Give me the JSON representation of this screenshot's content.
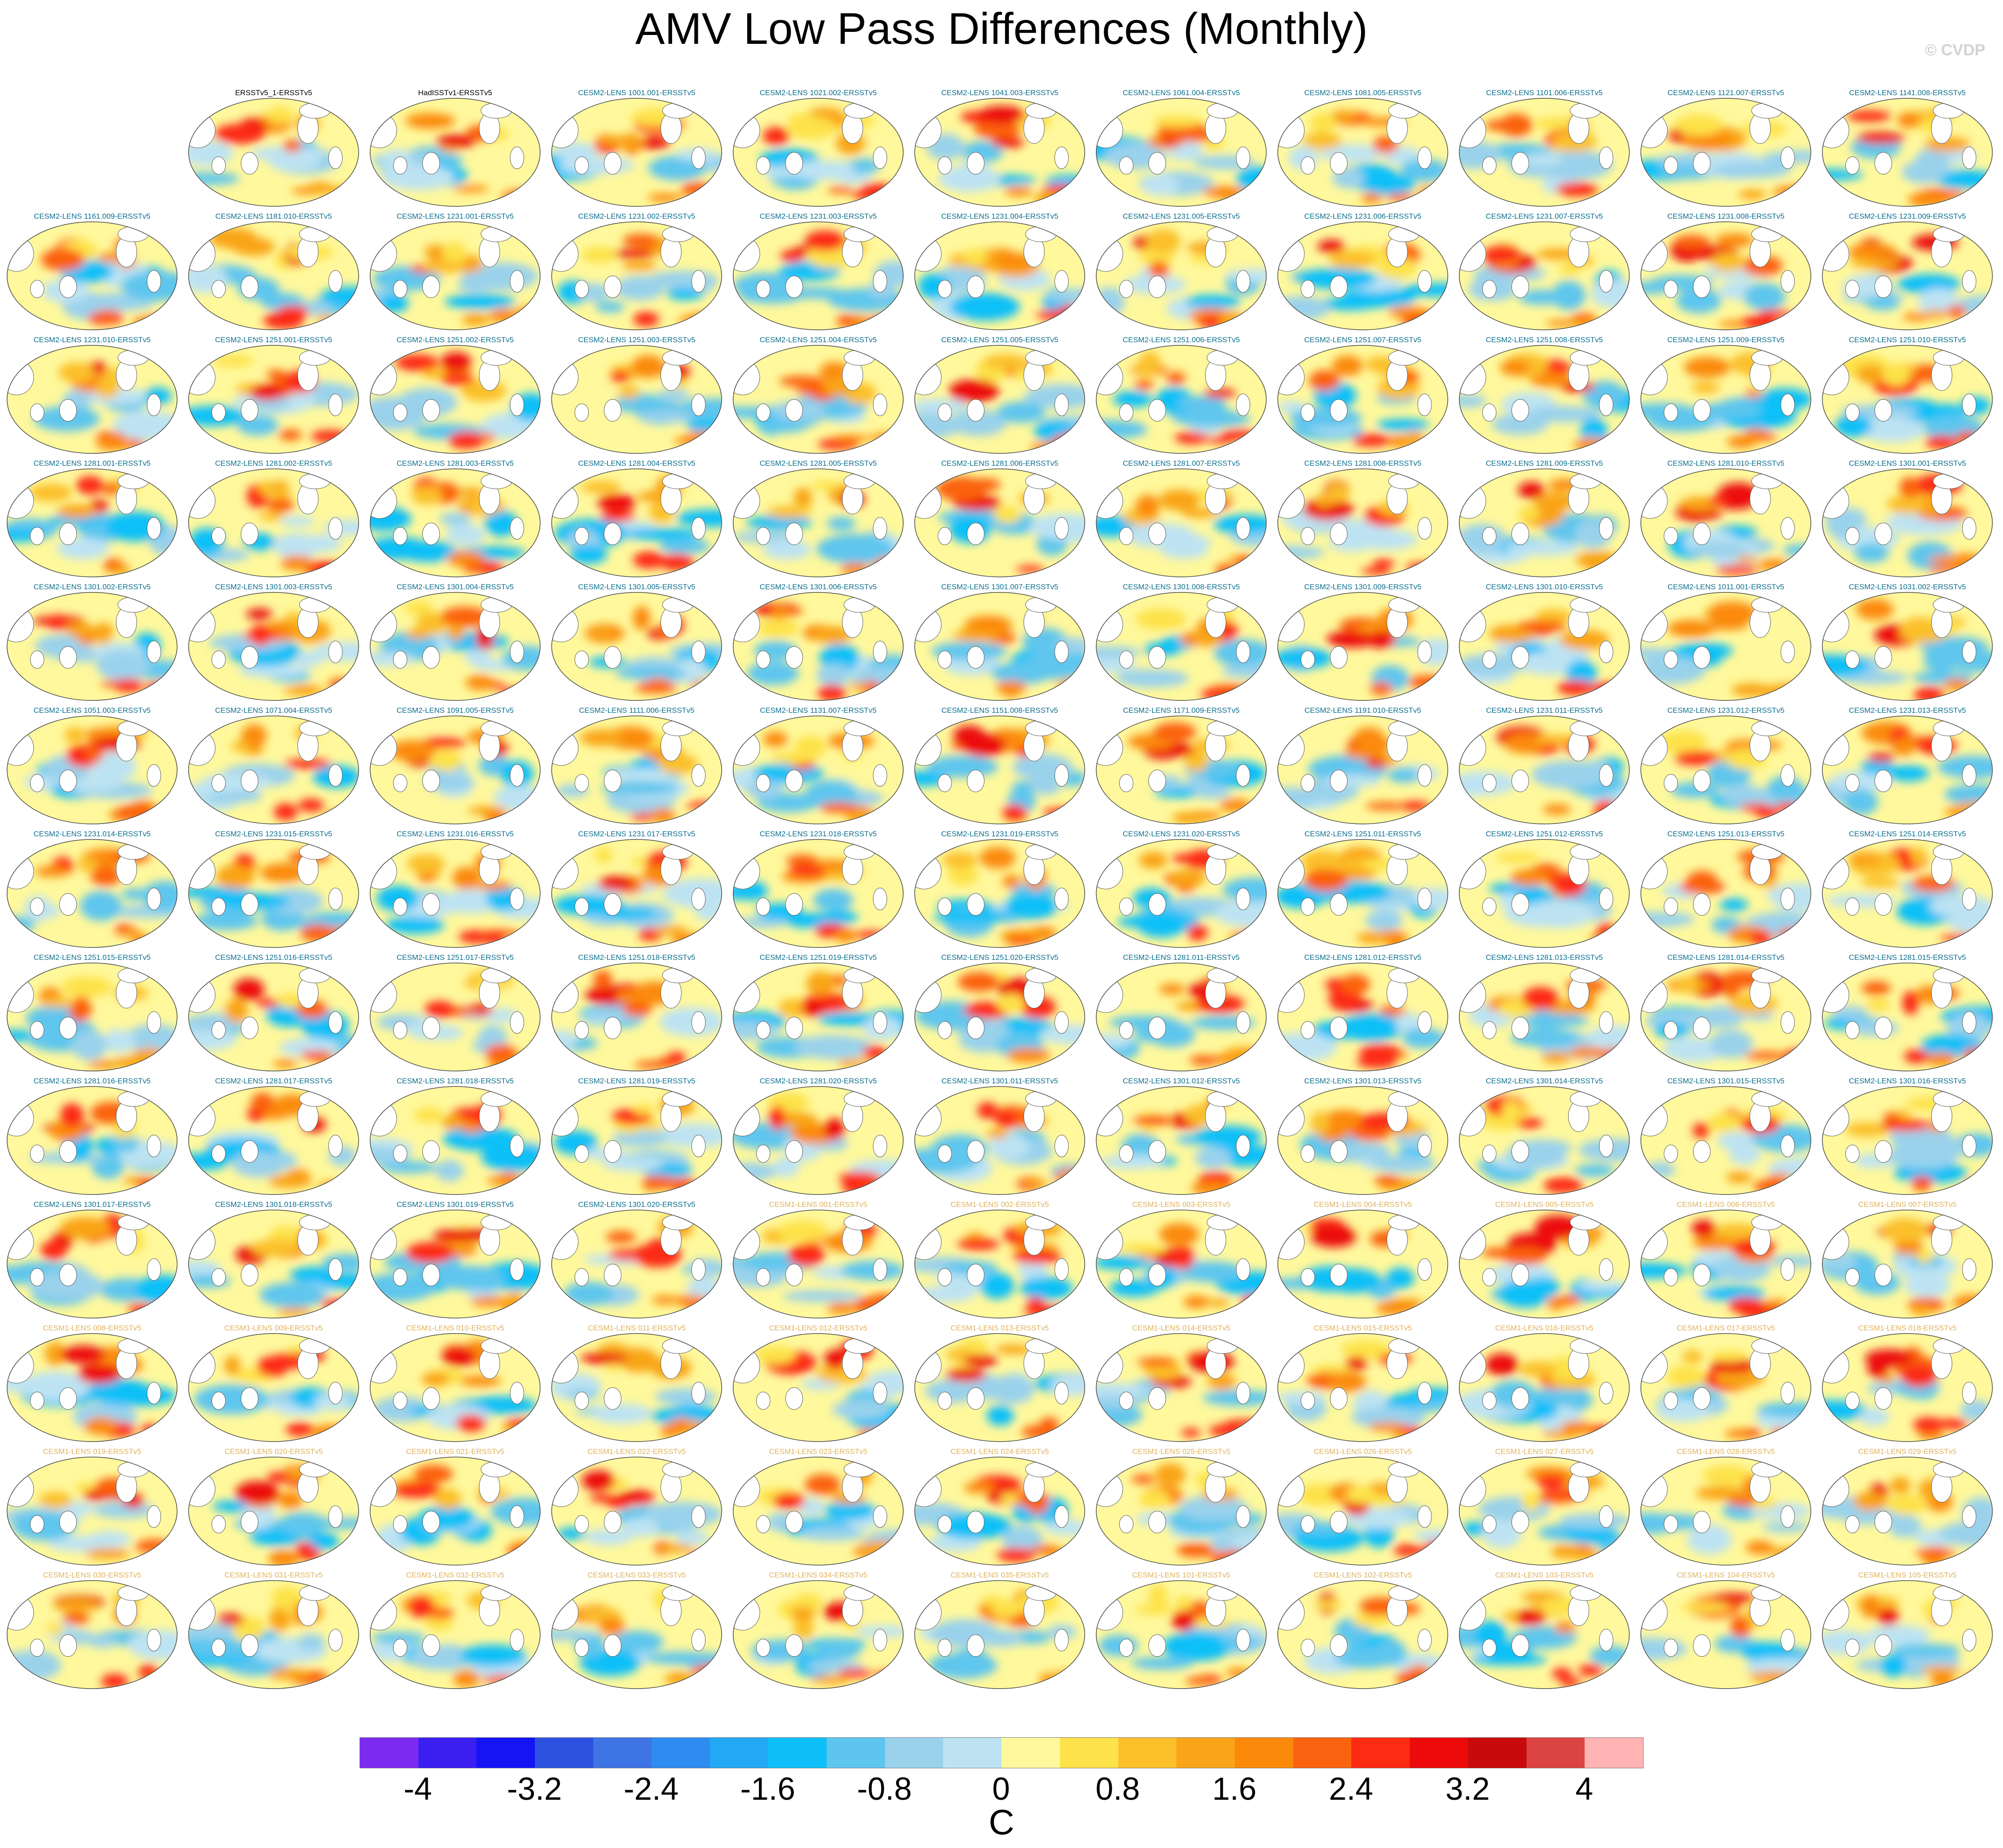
{
  "title": "AMV Low Pass Differences (Monthly)",
  "credit": "© CVDP",
  "panel_colors": {
    "observations": "#000000",
    "cesm2": "#0b6f8f",
    "cesm1": "#e0b25a"
  },
  "panels": [
    {
      "label": "ERSSTv5_1-ERSSTv5",
      "group": "observations"
    },
    {
      "label": "HadISSTv1-ERSSTv5",
      "group": "observations"
    },
    {
      "label": "CESM2-LENS 1001.001-ERSSTv5",
      "group": "cesm2"
    },
    {
      "label": "CESM2-LENS 1021.002-ERSSTv5",
      "group": "cesm2"
    },
    {
      "label": "CESM2-LENS 1041.003-ERSSTv5",
      "group": "cesm2"
    },
    {
      "label": "CESM2-LENS 1061.004-ERSSTv5",
      "group": "cesm2"
    },
    {
      "label": "CESM2-LENS 1081.005-ERSSTv5",
      "group": "cesm2"
    },
    {
      "label": "CESM2-LENS 1101.006-ERSSTv5",
      "group": "cesm2"
    },
    {
      "label": "CESM2-LENS 1121.007-ERSSTv5",
      "group": "cesm2"
    },
    {
      "label": "CESM2-LENS 1141.008-ERSSTv5",
      "group": "cesm2"
    },
    {
      "label": "CESM2-LENS 1161.009-ERSSTv5",
      "group": "cesm2"
    },
    {
      "label": "CESM2-LENS 1181.010-ERSSTv5",
      "group": "cesm2"
    },
    {
      "label": "CESM2-LENS 1231.001-ERSSTv5",
      "group": "cesm2"
    },
    {
      "label": "CESM2-LENS 1231.002-ERSSTv5",
      "group": "cesm2"
    },
    {
      "label": "CESM2-LENS 1231.003-ERSSTv5",
      "group": "cesm2"
    },
    {
      "label": "CESM2-LENS 1231.004-ERSSTv5",
      "group": "cesm2"
    },
    {
      "label": "CESM2-LENS 1231.005-ERSSTv5",
      "group": "cesm2"
    },
    {
      "label": "CESM2-LENS 1231.006-ERSSTv5",
      "group": "cesm2"
    },
    {
      "label": "CESM2-LENS 1231.007-ERSSTv5",
      "group": "cesm2"
    },
    {
      "label": "CESM2-LENS 1231.008-ERSSTv5",
      "group": "cesm2"
    },
    {
      "label": "CESM2-LENS 1231.009-ERSSTv5",
      "group": "cesm2"
    },
    {
      "label": "CESM2-LENS 1231.010-ERSSTv5",
      "group": "cesm2"
    },
    {
      "label": "CESM2-LENS 1251.001-ERSSTv5",
      "group": "cesm2"
    },
    {
      "label": "CESM2-LENS 1251.002-ERSSTv5",
      "group": "cesm2"
    },
    {
      "label": "CESM2-LENS 1251.003-ERSSTv5",
      "group": "cesm2"
    },
    {
      "label": "CESM2-LENS 1251.004-ERSSTv5",
      "group": "cesm2"
    },
    {
      "label": "CESM2-LENS 1251.005-ERSSTv5",
      "group": "cesm2"
    },
    {
      "label": "CESM2-LENS 1251.006-ERSSTv5",
      "group": "cesm2"
    },
    {
      "label": "CESM2-LENS 1251.007-ERSSTv5",
      "group": "cesm2"
    },
    {
      "label": "CESM2-LENS 1251.008-ERSSTv5",
      "group": "cesm2"
    },
    {
      "label": "CESM2-LENS 1251.009-ERSSTv5",
      "group": "cesm2"
    },
    {
      "label": "CESM2-LENS 1251.010-ERSSTv5",
      "group": "cesm2"
    },
    {
      "label": "CESM2-LENS 1281.001-ERSSTv5",
      "group": "cesm2"
    },
    {
      "label": "CESM2-LENS 1281.002-ERSSTv5",
      "group": "cesm2"
    },
    {
      "label": "CESM2-LENS 1281.003-ERSSTv5",
      "group": "cesm2"
    },
    {
      "label": "CESM2-LENS 1281.004-ERSSTv5",
      "group": "cesm2"
    },
    {
      "label": "CESM2-LENS 1281.005-ERSSTv5",
      "group": "cesm2"
    },
    {
      "label": "CESM2-LENS 1281.006-ERSSTv5",
      "group": "cesm2"
    },
    {
      "label": "CESM2-LENS 1281.007-ERSSTv5",
      "group": "cesm2"
    },
    {
      "label": "CESM2-LENS 1281.008-ERSSTv5",
      "group": "cesm2"
    },
    {
      "label": "CESM2-LENS 1281.009-ERSSTv5",
      "group": "cesm2"
    },
    {
      "label": "CESM2-LENS 1281.010-ERSSTv5",
      "group": "cesm2"
    },
    {
      "label": "CESM2-LENS 1301.001-ERSSTv5",
      "group": "cesm2"
    },
    {
      "label": "CESM2-LENS 1301.002-ERSSTv5",
      "group": "cesm2"
    },
    {
      "label": "CESM2-LENS 1301.003-ERSSTv5",
      "group": "cesm2"
    },
    {
      "label": "CESM2-LENS 1301.004-ERSSTv5",
      "group": "cesm2"
    },
    {
      "label": "CESM2-LENS 1301.005-ERSSTv5",
      "group": "cesm2"
    },
    {
      "label": "CESM2-LENS 1301.006-ERSSTv5",
      "group": "cesm2"
    },
    {
      "label": "CESM2-LENS 1301.007-ERSSTv5",
      "group": "cesm2"
    },
    {
      "label": "CESM2-LENS 1301.008-ERSSTv5",
      "group": "cesm2"
    },
    {
      "label": "CESM2-LENS 1301.009-ERSSTv5",
      "group": "cesm2"
    },
    {
      "label": "CESM2-LENS 1301.010-ERSSTv5",
      "group": "cesm2"
    },
    {
      "label": "CESM2-LENS 1011.001-ERSSTv5",
      "group": "cesm2"
    },
    {
      "label": "CESM2-LENS 1031.002-ERSSTv5",
      "group": "cesm2"
    },
    {
      "label": "CESM2-LENS 1051.003-ERSSTv5",
      "group": "cesm2"
    },
    {
      "label": "CESM2-LENS 1071.004-ERSSTv5",
      "group": "cesm2"
    },
    {
      "label": "CESM2-LENS 1091.005-ERSSTv5",
      "group": "cesm2"
    },
    {
      "label": "CESM2-LENS 1111.006-ERSSTv5",
      "group": "cesm2"
    },
    {
      "label": "CESM2-LENS 1131.007-ERSSTv5",
      "group": "cesm2"
    },
    {
      "label": "CESM2-LENS 1151.008-ERSSTv5",
      "group": "cesm2"
    },
    {
      "label": "CESM2-LENS 1171.009-ERSSTv5",
      "group": "cesm2"
    },
    {
      "label": "CESM2-LENS 1191.010-ERSSTv5",
      "group": "cesm2"
    },
    {
      "label": "CESM2-LENS 1231.011-ERSSTv5",
      "group": "cesm2"
    },
    {
      "label": "CESM2-LENS 1231.012-ERSSTv5",
      "group": "cesm2"
    },
    {
      "label": "CESM2-LENS 1231.013-ERSSTv5",
      "group": "cesm2"
    },
    {
      "label": "CESM2-LENS 1231.014-ERSSTv5",
      "group": "cesm2"
    },
    {
      "label": "CESM2-LENS 1231.015-ERSSTv5",
      "group": "cesm2"
    },
    {
      "label": "CESM2-LENS 1231.016-ERSSTv5",
      "group": "cesm2"
    },
    {
      "label": "CESM2-LENS 1231.017-ERSSTv5",
      "group": "cesm2"
    },
    {
      "label": "CESM2-LENS 1231.018-ERSSTv5",
      "group": "cesm2"
    },
    {
      "label": "CESM2-LENS 1231.019-ERSSTv5",
      "group": "cesm2"
    },
    {
      "label": "CESM2-LENS 1231.020-ERSSTv5",
      "group": "cesm2"
    },
    {
      "label": "CESM2-LENS 1251.011-ERSSTv5",
      "group": "cesm2"
    },
    {
      "label": "CESM2-LENS 1251.012-ERSSTv5",
      "group": "cesm2"
    },
    {
      "label": "CESM2-LENS 1251.013-ERSSTv5",
      "group": "cesm2"
    },
    {
      "label": "CESM2-LENS 1251.014-ERSSTv5",
      "group": "cesm2"
    },
    {
      "label": "CESM2-LENS 1251.015-ERSSTv5",
      "group": "cesm2"
    },
    {
      "label": "CESM2-LENS 1251.016-ERSSTv5",
      "group": "cesm2"
    },
    {
      "label": "CESM2-LENS 1251.017-ERSSTv5",
      "group": "cesm2"
    },
    {
      "label": "CESM2-LENS 1251.018-ERSSTv5",
      "group": "cesm2"
    },
    {
      "label": "CESM2-LENS 1251.019-ERSSTv5",
      "group": "cesm2"
    },
    {
      "label": "CESM2-LENS 1251.020-ERSSTv5",
      "group": "cesm2"
    },
    {
      "label": "CESM2-LENS 1281.011-ERSSTv5",
      "group": "cesm2"
    },
    {
      "label": "CESM2-LENS 1281.012-ERSSTv5",
      "group": "cesm2"
    },
    {
      "label": "CESM2-LENS 1281.013-ERSSTv5",
      "group": "cesm2"
    },
    {
      "label": "CESM2-LENS 1281.014-ERSSTv5",
      "group": "cesm2"
    },
    {
      "label": "CESM2-LENS 1281.015-ERSSTv5",
      "group": "cesm2"
    },
    {
      "label": "CESM2-LENS 1281.016-ERSSTv5",
      "group": "cesm2"
    },
    {
      "label": "CESM2-LENS 1281.017-ERSSTv5",
      "group": "cesm2"
    },
    {
      "label": "CESM2-LENS 1281.018-ERSSTv5",
      "group": "cesm2"
    },
    {
      "label": "CESM2-LENS 1281.019-ERSSTv5",
      "group": "cesm2"
    },
    {
      "label": "CESM2-LENS 1281.020-ERSSTv5",
      "group": "cesm2"
    },
    {
      "label": "CESM2-LENS 1301.011-ERSSTv5",
      "group": "cesm2"
    },
    {
      "label": "CESM2-LENS 1301.012-ERSSTv5",
      "group": "cesm2"
    },
    {
      "label": "CESM2-LENS 1301.013-ERSSTv5",
      "group": "cesm2"
    },
    {
      "label": "CESM2-LENS 1301.014-ERSSTv5",
      "group": "cesm2"
    },
    {
      "label": "CESM2-LENS 1301.015-ERSSTv5",
      "group": "cesm2"
    },
    {
      "label": "CESM2-LENS 1301.016-ERSSTv5",
      "group": "cesm2"
    },
    {
      "label": "CESM2-LENS 1301.017-ERSSTv5",
      "group": "cesm2"
    },
    {
      "label": "CESM2-LENS 1301.018-ERSSTv5",
      "group": "cesm2"
    },
    {
      "label": "CESM2-LENS 1301.019-ERSSTv5",
      "group": "cesm2"
    },
    {
      "label": "CESM2-LENS 1301.020-ERSSTv5",
      "group": "cesm2"
    },
    {
      "label": "CESM1-LENS 001-ERSSTv5",
      "group": "cesm1"
    },
    {
      "label": "CESM1-LENS 002-ERSSTv5",
      "group": "cesm1"
    },
    {
      "label": "CESM1-LENS 003-ERSSTv5",
      "group": "cesm1"
    },
    {
      "label": "CESM1-LENS 004-ERSSTv5",
      "group": "cesm1"
    },
    {
      "label": "CESM1-LENS 005-ERSSTv5",
      "group": "cesm1"
    },
    {
      "label": "CESM1-LENS 006-ERSSTv5",
      "group": "cesm1"
    },
    {
      "label": "CESM1-LENS 007-ERSSTv5",
      "group": "cesm1"
    },
    {
      "label": "CESM1-LENS 008-ERSSTv5",
      "group": "cesm1"
    },
    {
      "label": "CESM1-LENS 009-ERSSTv5",
      "group": "cesm1"
    },
    {
      "label": "CESM1-LENS 010-ERSSTv5",
      "group": "cesm1"
    },
    {
      "label": "CESM1-LENS 011-ERSSTv5",
      "group": "cesm1"
    },
    {
      "label": "CESM1-LENS 012-ERSSTv5",
      "group": "cesm1"
    },
    {
      "label": "CESM1-LENS 013-ERSSTv5",
      "group": "cesm1"
    },
    {
      "label": "CESM1-LENS 014-ERSSTv5",
      "group": "cesm1"
    },
    {
      "label": "CESM1-LENS 015-ERSSTv5",
      "group": "cesm1"
    },
    {
      "label": "CESM1-LENS 016-ERSSTv5",
      "group": "cesm1"
    },
    {
      "label": "CESM1-LENS 017-ERSSTv5",
      "group": "cesm1"
    },
    {
      "label": "CESM1-LENS 018-ERSSTv5",
      "group": "cesm1"
    },
    {
      "label": "CESM1-LENS 019-ERSSTv5",
      "group": "cesm1"
    },
    {
      "label": "CESM1-LENS 020-ERSSTv5",
      "group": "cesm1"
    },
    {
      "label": "CESM1-LENS 021-ERSSTv5",
      "group": "cesm1"
    },
    {
      "label": "CESM1-LENS 022-ERSSTv5",
      "group": "cesm1"
    },
    {
      "label": "CESM1-LENS 023-ERSSTv5",
      "group": "cesm1"
    },
    {
      "label": "CESM1-LENS 024-ERSSTv5",
      "group": "cesm1"
    },
    {
      "label": "CESM1-LENS 025-ERSSTv5",
      "group": "cesm1"
    },
    {
      "label": "CESM1-LENS 026-ERSSTv5",
      "group": "cesm1"
    },
    {
      "label": "CESM1-LENS 027-ERSSTv5",
      "group": "cesm1"
    },
    {
      "label": "CESM1-LENS 028-ERSSTv5",
      "group": "cesm1"
    },
    {
      "label": "CESM1-LENS 029-ERSSTv5",
      "group": "cesm1"
    },
    {
      "label": "CESM1-LENS 030-ERSSTv5",
      "group": "cesm1"
    },
    {
      "label": "CESM1-LENS 031-ERSSTv5",
      "group": "cesm1"
    },
    {
      "label": "CESM1-LENS 032-ERSSTv5",
      "group": "cesm1"
    },
    {
      "label": "CESM1-LENS 033-ERSSTv5",
      "group": "cesm1"
    },
    {
      "label": "CESM1-LENS 034-ERSSTv5",
      "group": "cesm1"
    },
    {
      "label": "CESM1-LENS 035-ERSSTv5",
      "group": "cesm1"
    },
    {
      "label": "CESM1-LENS 101-ERSSTv5",
      "group": "cesm1"
    },
    {
      "label": "CESM1-LENS 102-ERSSTv5",
      "group": "cesm1"
    },
    {
      "label": "CESM1-LENS 103-ERSSTv5",
      "group": "cesm1"
    },
    {
      "label": "CESM1-LENS 104-ERSSTv5",
      "group": "cesm1"
    },
    {
      "label": "CESM1-LENS 105-ERSSTv5",
      "group": "cesm1"
    }
  ],
  "colorbar": {
    "unit": "C",
    "tick_labels": [
      "-4",
      "-3.2",
      "-2.4",
      "-1.6",
      "-0.8",
      "0",
      "0.8",
      "1.6",
      "2.4",
      "3.2",
      "4"
    ],
    "colors": [
      "#7b2bf0",
      "#3b1ff0",
      "#1414f5",
      "#2e52e0",
      "#3f74e4",
      "#2e8cf0",
      "#22a8f5",
      "#0fc0f8",
      "#5ec6ee",
      "#9ad2ec",
      "#bde3f3",
      "#fff89c",
      "#fde24a",
      "#fbc02a",
      "#f9a419",
      "#fb8a0a",
      "#fb6210",
      "#fc2b12",
      "#ec0a0a",
      "#c80a0a",
      "#dc4444",
      "#ffb3b3"
    ]
  }
}
